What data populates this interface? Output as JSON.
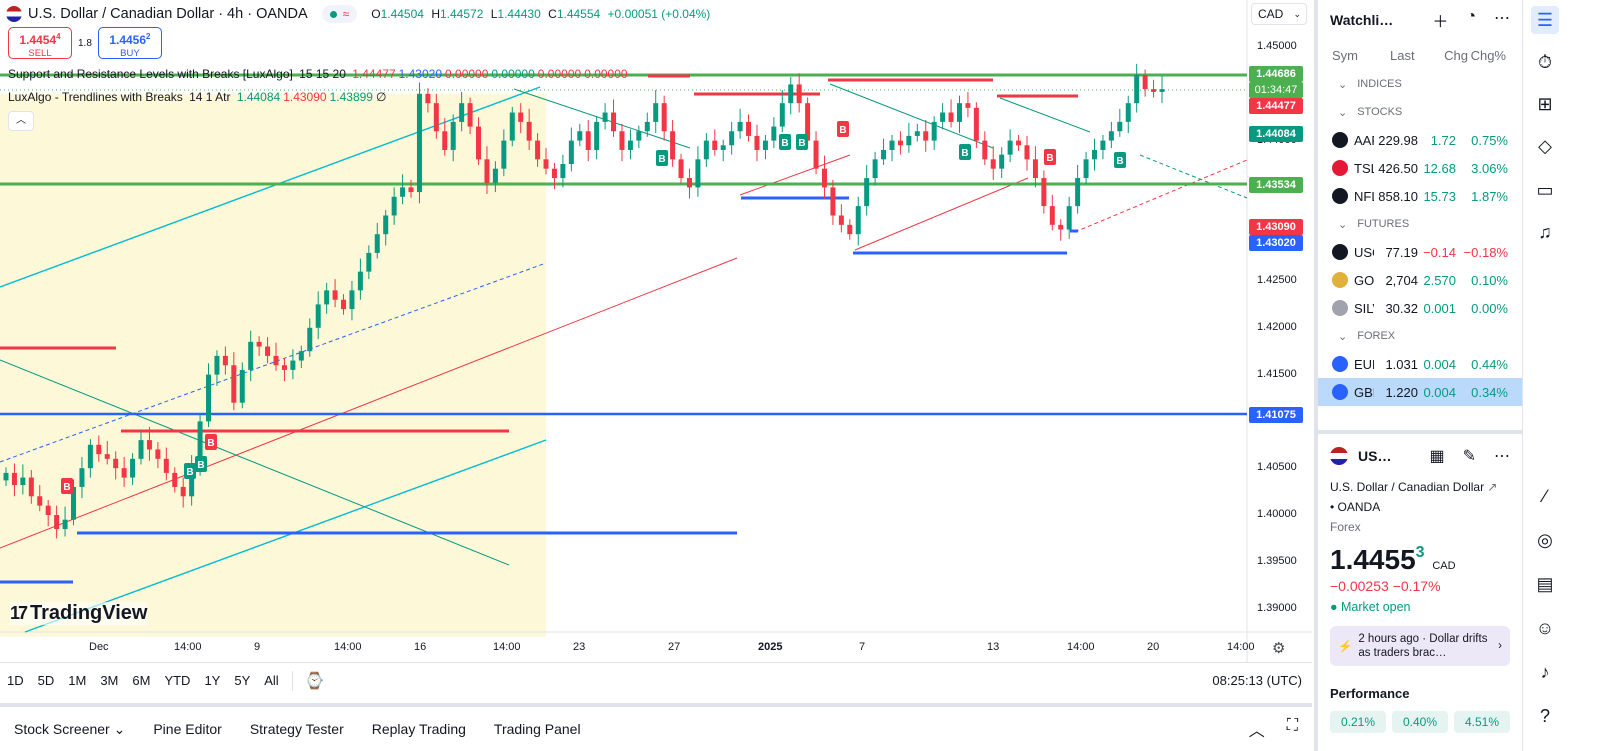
{
  "header": {
    "title": "U.S. Dollar / Canadian Dollar · 4h · OANDA",
    "ohlc": [
      {
        "k": "O",
        "v": "1.44504"
      },
      {
        "k": "H",
        "v": "1.44572"
      },
      {
        "k": "L",
        "v": "1.44430"
      },
      {
        "k": "C",
        "v": "1.44554"
      }
    ],
    "change": "+0.00051 (+0.04%)",
    "currency": "CAD"
  },
  "trade": {
    "sell_price": "1.4454",
    "sell_sup": "4",
    "sell_label": "SELL",
    "spread": "1.8",
    "buy_price": "1.4456",
    "buy_sup": "2",
    "buy_label": "BUY"
  },
  "indicators": [
    {
      "name": "Support and Resistance Levels with Breaks [LuxAlgo]",
      "params": "15 15 20",
      "values": [
        {
          "v": "1.44477",
          "c": "#f23645"
        },
        {
          "v": "1.43020",
          "c": "#2962ff"
        },
        {
          "v": "0.00000",
          "c": "#f23645"
        },
        {
          "v": "0.00000",
          "c": "#089981"
        },
        {
          "v": "0.00000",
          "c": "#f23645"
        },
        {
          "v": "0.00000",
          "c": "#f23645"
        }
      ]
    },
    {
      "name": "LuxAlgo - Trendlines with Breaks",
      "params": "14 1 Atr",
      "values": [
        {
          "v": "1.44084",
          "c": "#089981"
        },
        {
          "v": "1.43090",
          "c": "#f23645"
        },
        {
          "v": "1.43899",
          "c": "#089981"
        },
        {
          "v": "∅",
          "c": "#131722"
        }
      ]
    }
  ],
  "price_axis": [
    "1.45000",
    "1.44500",
    "1.44000",
    "1.43500",
    "1.43000",
    "1.42500",
    "1.42000",
    "1.41500",
    "1.41000",
    "1.40500",
    "1.40000",
    "1.39500",
    "1.39000"
  ],
  "price_labels": {
    "green_top": "1.44686",
    "countdown": "01:34:47",
    "red_top": "1.44477",
    "teal": "1.44084",
    "green_mid": "1.43534",
    "red_low": "1.43090",
    "blue_low": "1.43020",
    "blue_line": "1.41075"
  },
  "time_axis": [
    "Dec",
    "14:00",
    "9",
    "14:00",
    "16",
    "14:00",
    "23",
    "27",
    "2025",
    "7",
    "13",
    "14:00",
    "20",
    "14:00"
  ],
  "watermark": "TradingView",
  "timeframes": [
    "1D",
    "5D",
    "1M",
    "3M",
    "6M",
    "YTD",
    "1Y",
    "5Y",
    "All"
  ],
  "clock": "08:25:13 (UTC)",
  "bottom_tabs": [
    "Stock Screener",
    "Pine Editor",
    "Strategy Tester",
    "Replay Trading",
    "Trading Panel"
  ],
  "watchlist": {
    "title": "Watchli…",
    "columns": {
      "sym": "Sym",
      "last": "Last",
      "chg": "Chg",
      "chgp": "Chg%"
    },
    "sections": [
      {
        "label": "INDICES",
        "rows": []
      },
      {
        "label": "STOCKS",
        "rows": [
          {
            "sym": "AAPL",
            "last": "229.98",
            "chg": "1.72",
            "chgp": "0.75%",
            "dir": "pos",
            "icon": "#131722"
          },
          {
            "sym": "TSLA",
            "last": "426.50",
            "chg": "12.68",
            "chgp": "3.06%",
            "dir": "pos",
            "icon": "#e31937"
          },
          {
            "sym": "NFLX",
            "last": "858.10",
            "chg": "15.73",
            "chgp": "1.87%",
            "dir": "pos",
            "icon": "#131722"
          }
        ]
      },
      {
        "label": "FUTURES",
        "rows": [
          {
            "sym": "USOIL",
            "last": "77.19",
            "chg": "−0.14",
            "chgp": "−0.18%",
            "dir": "neg",
            "icon": "#131722"
          },
          {
            "sym": "GOLD",
            "last": "2,704",
            "chg": "2.570",
            "chgp": "0.10%",
            "dir": "pos",
            "icon": "#e0b23a"
          },
          {
            "sym": "SILVER",
            "last": "30.32",
            "chg": "0.001",
            "chgp": "0.00%",
            "dir": "pos",
            "icon": "#a0a3ab"
          }
        ]
      },
      {
        "label": "FOREX",
        "rows": [
          {
            "sym": "EURUSD",
            "last": "1.031",
            "chg": "0.004",
            "chgp": "0.44%",
            "dir": "pos",
            "icon": "#2962ff"
          },
          {
            "sym": "GBPUSD",
            "last": "1.220",
            "chg": "0.004",
            "chgp": "0.34%",
            "dir": "pos",
            "icon": "#2962ff",
            "selected": true
          }
        ]
      }
    ]
  },
  "detail": {
    "symbol": "US…",
    "name": "U.S. Dollar / Canadian Dollar",
    "exchange": "• OANDA",
    "type": "Forex",
    "price": "1.4455",
    "price_sup": "3",
    "currency": "CAD",
    "change": "−0.00253  −0.17%",
    "status": "● Market open",
    "news": "2 hours ago · Dollar drifts as traders brac…",
    "performance_label": "Performance",
    "performance": [
      "0.21%",
      "0.40%",
      "4.51%"
    ]
  },
  "colors": {
    "up": "#089981",
    "down": "#f23645",
    "blue": "#2962ff",
    "green_level": "#4caf50",
    "cyan": "#00bcd4"
  },
  "chart_data": {
    "type": "candlestick",
    "symbol": "USDCAD",
    "timeframe": "4h",
    "ylim": [
      1.387,
      1.454
    ],
    "candles_close": [
      1.4045,
      1.4032,
      1.404,
      1.402,
      1.401,
      1.4,
      1.3985,
      1.3995,
      1.403,
      1.405,
      1.4075,
      1.4065,
      1.406,
      1.405,
      1.404,
      1.406,
      1.408,
      1.407,
      1.406,
      1.4045,
      1.403,
      1.402,
      1.405,
      1.41,
      1.415,
      1.417,
      1.416,
      1.412,
      1.4155,
      1.4185,
      1.418,
      1.417,
      1.416,
      1.4155,
      1.4165,
      1.4175,
      1.42,
      1.4225,
      1.424,
      1.423,
      1.422,
      1.424,
      1.426,
      1.428,
      1.43,
      1.432,
      1.434,
      1.435,
      1.4345,
      1.445,
      1.444,
      1.441,
      1.439,
      1.442,
      1.444,
      1.4415,
      1.438,
      1.4355,
      1.437,
      1.44,
      1.443,
      1.442,
      1.44,
      1.438,
      1.437,
      1.436,
      1.4375,
      1.44,
      1.441,
      1.439,
      1.442,
      1.443,
      1.441,
      1.439,
      1.44,
      1.441,
      1.442,
      1.444,
      1.441,
      1.438,
      1.436,
      1.435,
      1.438,
      1.44,
      1.439,
      1.4395,
      1.441,
      1.442,
      1.4405,
      1.439,
      1.44,
      1.4415,
      1.444,
      1.446,
      1.444,
      1.44,
      1.437,
      1.435,
      1.432,
      1.431,
      1.43,
      1.433,
      1.436,
      1.438,
      1.439,
      1.44,
      1.4395,
      1.4405,
      1.441,
      1.44,
      1.442,
      1.443,
      1.442,
      1.444,
      1.4435,
      1.44,
      1.438,
      1.437,
      1.4385,
      1.44,
      1.4395,
      1.438,
      1.436,
      1.433,
      1.431,
      1.4305,
      1.433,
      1.436,
      1.438,
      1.439,
      1.44,
      1.441,
      1.442,
      1.444,
      1.447,
      1.4455,
      1.4452,
      1.4455
    ]
  }
}
